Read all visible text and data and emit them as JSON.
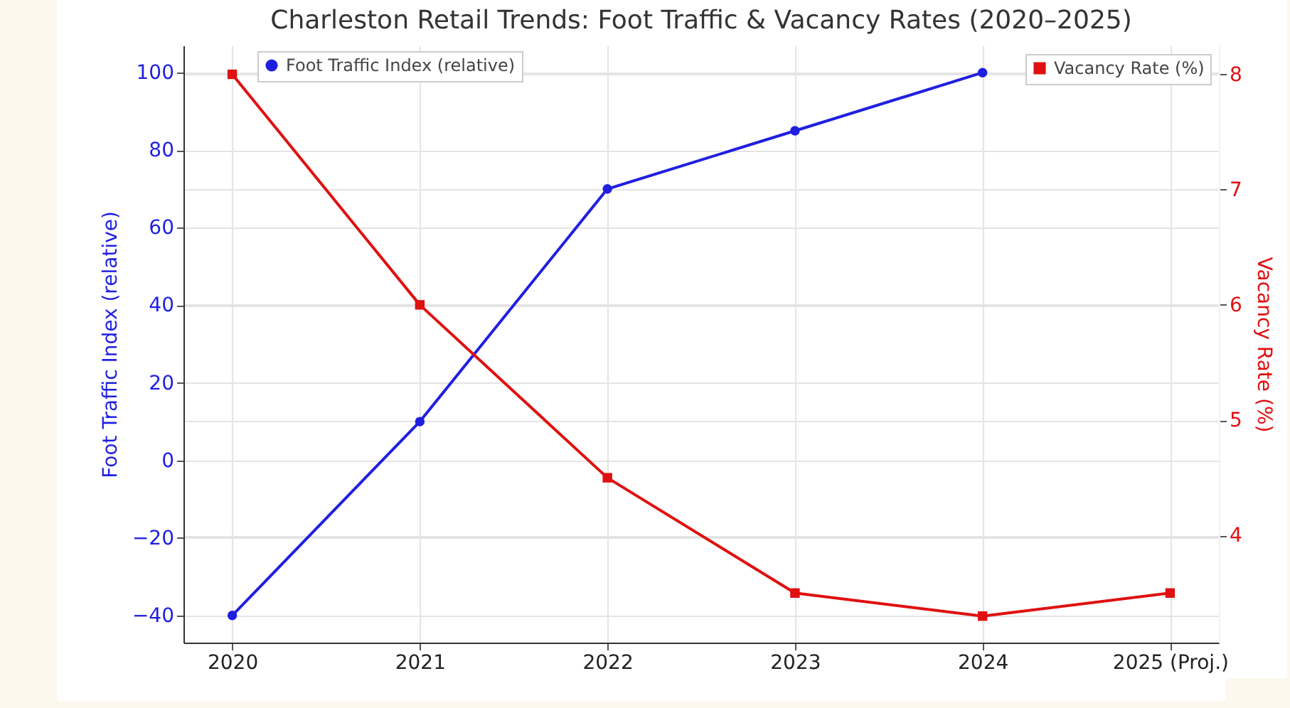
{
  "chart_data": {
    "type": "line",
    "title": "Charleston Retail Trends: Foot Traffic & Vacancy Rates (2020–2025)",
    "categories": [
      "2020",
      "2021",
      "2022",
      "2023",
      "2024",
      "2025 (Proj.)"
    ],
    "ylabel": "Foot Traffic Index (relative)",
    "y2label": "Vacancy Rate (%)",
    "series": [
      {
        "name": "Foot Traffic Index (relative)",
        "color": "#1f1fe0",
        "marker": "circle",
        "values": [
          -40,
          10,
          70,
          85,
          100,
          null
        ]
      },
      {
        "name": "Vacancy Rate (%)",
        "color": "#e01010",
        "marker": "square",
        "axis": "y2",
        "values": [
          8,
          6,
          4.5,
          3.5,
          3.3,
          3.5
        ]
      }
    ],
    "ylim": [
      -47,
      107
    ],
    "yticks": [
      -40,
      -20,
      0,
      20,
      40,
      60,
      80,
      100
    ],
    "y2lim": [
      3.07,
      8.25
    ],
    "y2ticks": [
      4,
      5,
      6,
      7,
      8
    ],
    "grid": true,
    "legend": "top",
    "line_style": "solid"
  }
}
